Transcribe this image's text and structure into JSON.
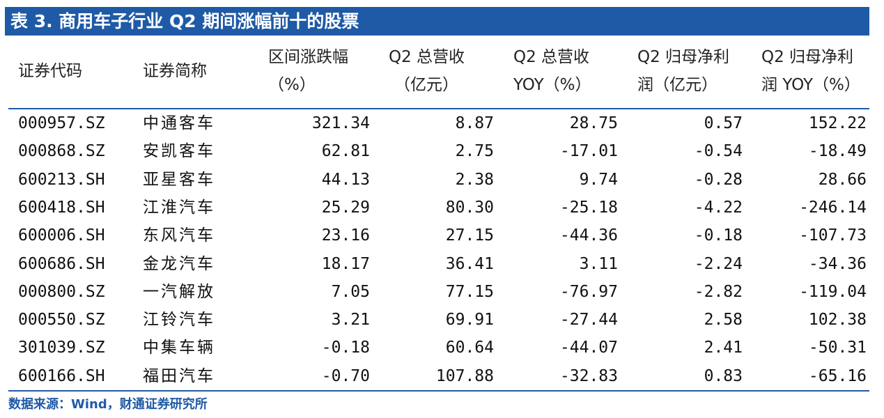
{
  "title": "表 3. 商用车子行业 Q2 期间涨幅前十的股票",
  "columns": [
    {
      "line1": "证券代码",
      "line2": ""
    },
    {
      "line1": "证券简称",
      "line2": ""
    },
    {
      "line1": "区间涨跌幅",
      "line2": "（%）"
    },
    {
      "line1": "Q2 总营收",
      "line2": "（亿元）"
    },
    {
      "line1": "Q2 总营收",
      "line2": "YOY（%）"
    },
    {
      "line1": "Q2 归母净利",
      "line2": "润（亿元）"
    },
    {
      "line1": "Q2 归母净利",
      "line2": "润 YOY（%）"
    }
  ],
  "rows": [
    [
      "000957.SZ",
      "中通客车",
      "321.34",
      "8.87",
      "28.75",
      "0.57",
      "152.22"
    ],
    [
      "000868.SZ",
      "安凯客车",
      "62.81",
      "2.75",
      "-17.01",
      "-0.54",
      "-18.49"
    ],
    [
      "600213.SH",
      "亚星客车",
      "44.13",
      "2.38",
      "9.74",
      "-0.28",
      "28.66"
    ],
    [
      "600418.SH",
      "江淮汽车",
      "25.29",
      "80.30",
      "-25.18",
      "-4.22",
      "-246.14"
    ],
    [
      "600006.SH",
      "东风汽车",
      "23.16",
      "27.15",
      "-44.36",
      "-0.18",
      "-107.73"
    ],
    [
      "600686.SH",
      "金龙汽车",
      "18.17",
      "36.41",
      "3.11",
      "-2.24",
      "-34.36"
    ],
    [
      "000800.SZ",
      "一汽解放",
      "7.05",
      "77.15",
      "-76.97",
      "-2.82",
      "-119.04"
    ],
    [
      "000550.SZ",
      "江铃汽车",
      "3.21",
      "69.91",
      "-27.44",
      "2.58",
      "102.38"
    ],
    [
      "301039.SZ",
      "中集车辆",
      "-0.18",
      "60.64",
      "-44.07",
      "2.41",
      "-50.31"
    ],
    [
      "600166.SH",
      "福田汽车",
      "-0.70",
      "107.88",
      "-32.83",
      "0.83",
      "-65.16"
    ]
  ],
  "source": "数据来源：Wind，财通证券研究所",
  "colors": {
    "accent": "#1f5aa6"
  }
}
